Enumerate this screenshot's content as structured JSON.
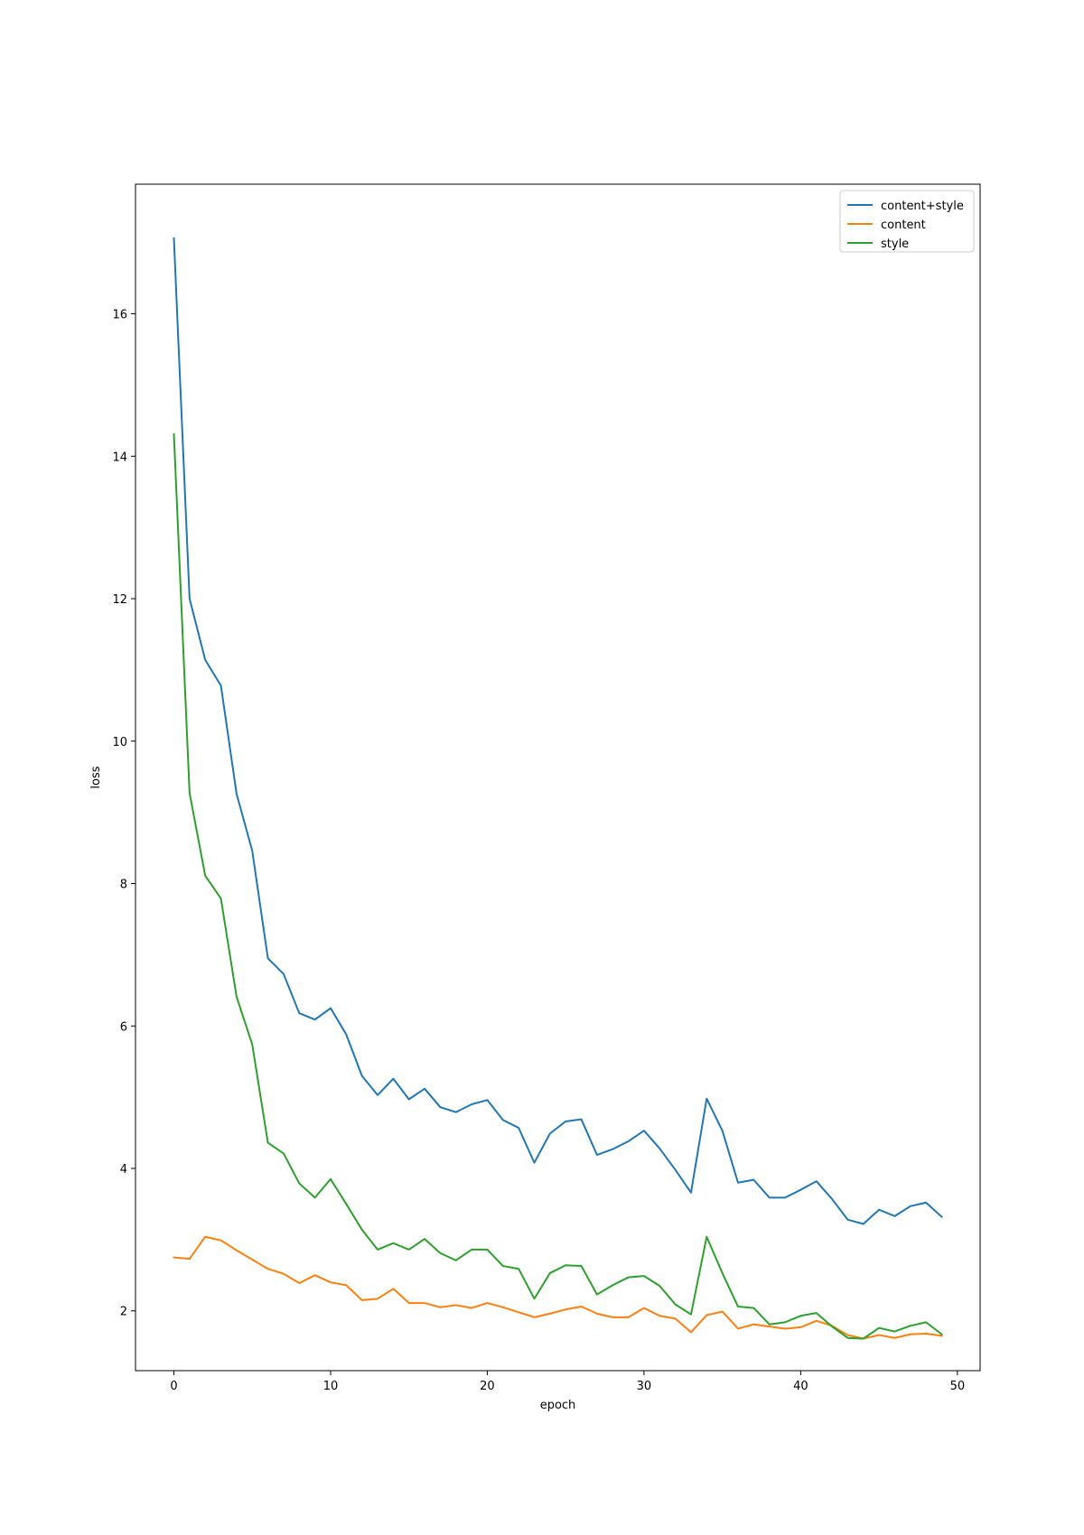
{
  "chart_data": {
    "type": "line",
    "title": "",
    "xlabel": "epoch",
    "ylabel": "loss",
    "xlim": [
      -2.45,
      51.45
    ],
    "ylim": [
      1.16,
      17.82
    ],
    "xticks": [
      0,
      10,
      20,
      30,
      40,
      50
    ],
    "yticks": [
      2,
      4,
      6,
      8,
      10,
      12,
      14,
      16
    ],
    "grid": false,
    "legend_position": "upper right",
    "x": [
      0,
      1,
      2,
      3,
      4,
      5,
      6,
      7,
      8,
      9,
      10,
      11,
      12,
      13,
      14,
      15,
      16,
      17,
      18,
      19,
      20,
      21,
      22,
      23,
      24,
      25,
      26,
      27,
      28,
      29,
      30,
      31,
      32,
      33,
      34,
      35,
      36,
      37,
      38,
      39,
      40,
      41,
      42,
      43,
      44,
      45,
      46,
      47,
      48,
      49
    ],
    "series": [
      {
        "name": "content+style",
        "color": "#1f77b4",
        "values": [
          17.06,
          12.0,
          11.14,
          10.78,
          9.26,
          8.46,
          6.95,
          6.73,
          6.18,
          6.09,
          6.25,
          5.88,
          5.3,
          5.03,
          5.26,
          4.97,
          5.12,
          4.86,
          4.79,
          4.9,
          4.96,
          4.68,
          4.57,
          4.08,
          4.49,
          4.66,
          4.69,
          4.19,
          4.27,
          4.38,
          4.53,
          4.28,
          3.98,
          3.66,
          4.98,
          4.53,
          3.8,
          3.84,
          3.59,
          3.59,
          3.7,
          3.82,
          3.57,
          3.28,
          3.22,
          3.42,
          3.33,
          3.47,
          3.52,
          3.32
        ]
      },
      {
        "name": "content",
        "color": "#ff7f0e",
        "values": [
          2.75,
          2.73,
          3.04,
          2.99,
          2.85,
          2.72,
          2.59,
          2.52,
          2.39,
          2.5,
          2.4,
          2.36,
          2.15,
          2.17,
          2.31,
          2.11,
          2.11,
          2.05,
          2.08,
          2.04,
          2.11,
          2.05,
          1.98,
          1.91,
          1.96,
          2.02,
          2.06,
          1.96,
          1.91,
          1.91,
          2.04,
          1.93,
          1.89,
          1.7,
          1.94,
          1.99,
          1.75,
          1.81,
          1.78,
          1.75,
          1.77,
          1.86,
          1.79,
          1.66,
          1.61,
          1.66,
          1.62,
          1.67,
          1.68,
          1.65
        ]
      },
      {
        "name": "style",
        "color": "#2ca02c",
        "values": [
          14.31,
          9.27,
          8.11,
          7.79,
          6.41,
          5.74,
          4.36,
          4.21,
          3.79,
          3.59,
          3.85,
          3.5,
          3.14,
          2.86,
          2.95,
          2.86,
          3.01,
          2.81,
          2.71,
          2.86,
          2.86,
          2.63,
          2.59,
          2.17,
          2.53,
          2.64,
          2.63,
          2.23,
          2.36,
          2.47,
          2.49,
          2.35,
          2.09,
          1.95,
          3.04,
          2.53,
          2.06,
          2.04,
          1.81,
          1.84,
          1.93,
          1.97,
          1.78,
          1.62,
          1.61,
          1.76,
          1.71,
          1.79,
          1.84,
          1.67
        ]
      }
    ]
  }
}
